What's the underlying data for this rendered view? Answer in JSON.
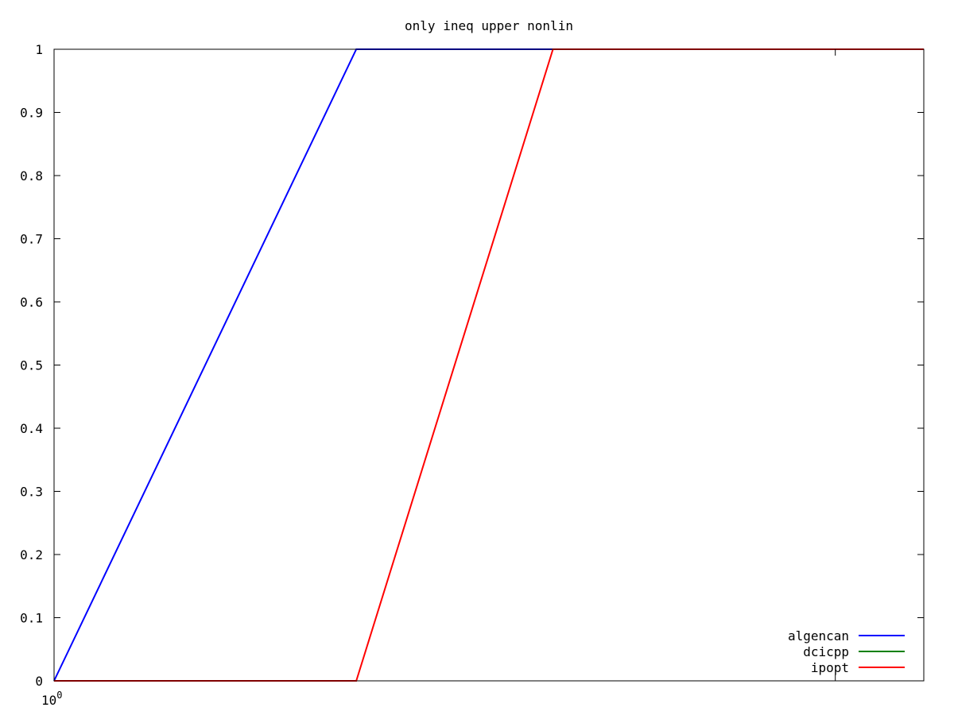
{
  "chart_data": {
    "type": "line",
    "title": "only ineq upper nonlin",
    "xlabel": "",
    "ylabel": "",
    "x_scale": "log",
    "xlim": [
      1,
      7.35
    ],
    "ylim": [
      0,
      1
    ],
    "x_ticks": [
      {
        "value": 1,
        "label_base": "10",
        "label_exp": "0"
      },
      {
        "value": 6,
        "label_base": "",
        "label_exp": ""
      }
    ],
    "y_ticks": [
      {
        "value": 0,
        "label": "0"
      },
      {
        "value": 0.1,
        "label": "0.1"
      },
      {
        "value": 0.2,
        "label": "0.2"
      },
      {
        "value": 0.3,
        "label": "0.3"
      },
      {
        "value": 0.4,
        "label": "0.4"
      },
      {
        "value": 0.5,
        "label": "0.5"
      },
      {
        "value": 0.6,
        "label": "0.6"
      },
      {
        "value": 0.7,
        "label": "0.7"
      },
      {
        "value": 0.8,
        "label": "0.8"
      },
      {
        "value": 0.9,
        "label": "0.9"
      },
      {
        "value": 1,
        "label": "1"
      }
    ],
    "grid": false,
    "legend_position": "bottom-right",
    "series": [
      {
        "name": "algencan",
        "color": "#0000ff",
        "points": [
          [
            1,
            0
          ],
          [
            2,
            1
          ],
          [
            7.35,
            1
          ]
        ]
      },
      {
        "name": "dcicpp",
        "color": "#008000",
        "points": []
      },
      {
        "name": "ipopt",
        "color": "#ff0000",
        "points": [
          [
            1,
            0
          ],
          [
            2,
            0
          ],
          [
            3.14,
            1
          ],
          [
            7.35,
            1
          ]
        ]
      }
    ]
  }
}
